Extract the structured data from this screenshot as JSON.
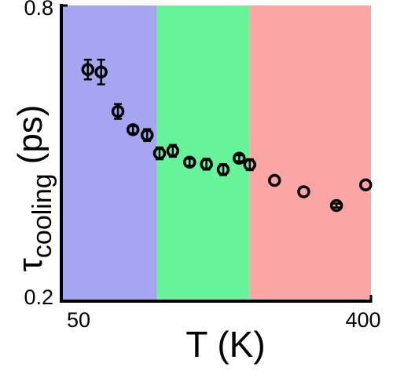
{
  "chart_data": {
    "type": "scatter",
    "title": "",
    "xlabel": "T (K)",
    "ylabel_symbol": "τ",
    "ylabel_subscript": "cooling",
    "ylabel_unit": "(ps)",
    "xlim": [
      50,
      400
    ],
    "ylim": [
      0.2,
      0.8
    ],
    "x_ticks": [
      50,
      400
    ],
    "x_tick_labels": [
      "50",
      "400"
    ],
    "y_ticks": [
      0.2,
      0.8
    ],
    "y_tick_labels": [
      "0.2",
      "0.8"
    ],
    "grid": false,
    "regions": [
      {
        "x_start": 50,
        "x_end": 158,
        "color": "#a6a5f2"
      },
      {
        "x_start": 158,
        "x_end": 263,
        "color": "#66f39a"
      },
      {
        "x_start": 263,
        "x_end": 400,
        "color": "#fba5a5"
      }
    ],
    "marker_color": "#000000",
    "series": [
      {
        "points": [
          {
            "x": 80,
            "y": 0.67,
            "err": 0.02
          },
          {
            "x": 95,
            "y": 0.665,
            "err": 0.025
          },
          {
            "x": 114,
            "y": 0.585,
            "err": 0.015
          },
          {
            "x": 131,
            "y": 0.548,
            "err": 0.007
          },
          {
            "x": 147,
            "y": 0.537,
            "err": 0.012
          },
          {
            "x": 161,
            "y": 0.5,
            "err": 0.012
          },
          {
            "x": 176,
            "y": 0.505,
            "err": 0.012
          },
          {
            "x": 195,
            "y": 0.482,
            "err": 0.007
          },
          {
            "x": 214,
            "y": 0.478,
            "err": 0.011
          },
          {
            "x": 233,
            "y": 0.467,
            "err": 0.011
          },
          {
            "x": 251,
            "y": 0.49,
            "err": 0.006
          },
          {
            "x": 263,
            "y": 0.477,
            "err": 0.011
          },
          {
            "x": 291,
            "y": 0.445,
            "err": 0.003
          },
          {
            "x": 324,
            "y": 0.422,
            "err": 0.003
          },
          {
            "x": 361,
            "y": 0.394,
            "err": 0.004
          },
          {
            "x": 394,
            "y": 0.436,
            "err": 0.003
          }
        ]
      }
    ]
  }
}
